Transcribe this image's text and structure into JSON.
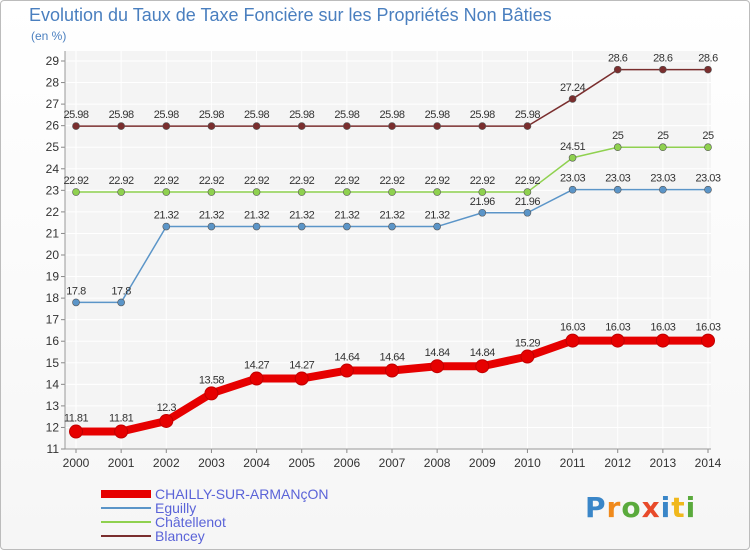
{
  "chart_data": {
    "type": "line",
    "title": "Evolution du Taux de Taxe Foncière sur les Propriétés Non Bâties",
    "ylabel": "(en %)",
    "xlabel": "",
    "ylim": [
      11,
      29
    ],
    "yticks": [
      11,
      12,
      13,
      14,
      15,
      16,
      17,
      18,
      19,
      20,
      21,
      22,
      23,
      24,
      25,
      26,
      27,
      28,
      29
    ],
    "x": [
      "2000",
      "2001",
      "2002",
      "2003",
      "2004",
      "2005",
      "2006",
      "2007",
      "2008",
      "2009",
      "2010",
      "2011",
      "2012",
      "2013",
      "2014"
    ],
    "grid": true,
    "legend_position": "bottom-left",
    "series": [
      {
        "name": "CHAILLY-SUR-ARMANçON",
        "color": "#e60000",
        "values": [
          11.81,
          11.81,
          12.3,
          13.58,
          14.27,
          14.27,
          14.64,
          14.64,
          14.84,
          14.84,
          15.29,
          16.03,
          16.03,
          16.03,
          16.03
        ],
        "labels": [
          "11.81",
          "11.81",
          "12.3",
          "13.58",
          "14.27",
          "14.27",
          "14.64",
          "14.64",
          "14.84",
          "14.84",
          "15.29",
          "16.03",
          "16.03",
          "16.03",
          "16.03"
        ]
      },
      {
        "name": "Eguilly",
        "color": "#5b95c8",
        "values": [
          17.8,
          17.8,
          21.32,
          21.32,
          21.32,
          21.32,
          21.32,
          21.32,
          21.32,
          21.96,
          21.96,
          23.03,
          23.03,
          23.03,
          23.03
        ],
        "labels": [
          "17.8",
          "17.8",
          "21.32",
          "21.32",
          "21.32",
          "21.32",
          "21.32",
          "21.32",
          "21.32",
          "21.96",
          "21.96",
          "23.03",
          "23.03",
          "23.03",
          "23.03"
        ]
      },
      {
        "name": "Châtellenot",
        "color": "#8fd14f",
        "values": [
          22.92,
          22.92,
          22.92,
          22.92,
          22.92,
          22.92,
          22.92,
          22.92,
          22.92,
          22.92,
          22.92,
          24.51,
          25,
          25,
          25
        ],
        "labels": [
          "22.92",
          "22.92",
          "22.92",
          "22.92",
          "22.92",
          "22.92",
          "22.92",
          "22.92",
          "22.92",
          "22.92",
          "22.92",
          "24.51",
          "25",
          "25",
          "25"
        ]
      },
      {
        "name": "Blancey",
        "color": "#7a2e2e",
        "values": [
          25.98,
          25.98,
          25.98,
          25.98,
          25.98,
          25.98,
          25.98,
          25.98,
          25.98,
          25.98,
          25.98,
          27.24,
          28.6,
          28.6,
          28.6
        ],
        "labels": [
          "25.98",
          "25.98",
          "25.98",
          "25.98",
          "25.98",
          "25.98",
          "25.98",
          "25.98",
          "25.98",
          "25.98",
          "25.98",
          "27.24",
          "28.6",
          "28.6",
          "28.6"
        ]
      }
    ]
  },
  "logo": {
    "text": "Proxiti"
  }
}
